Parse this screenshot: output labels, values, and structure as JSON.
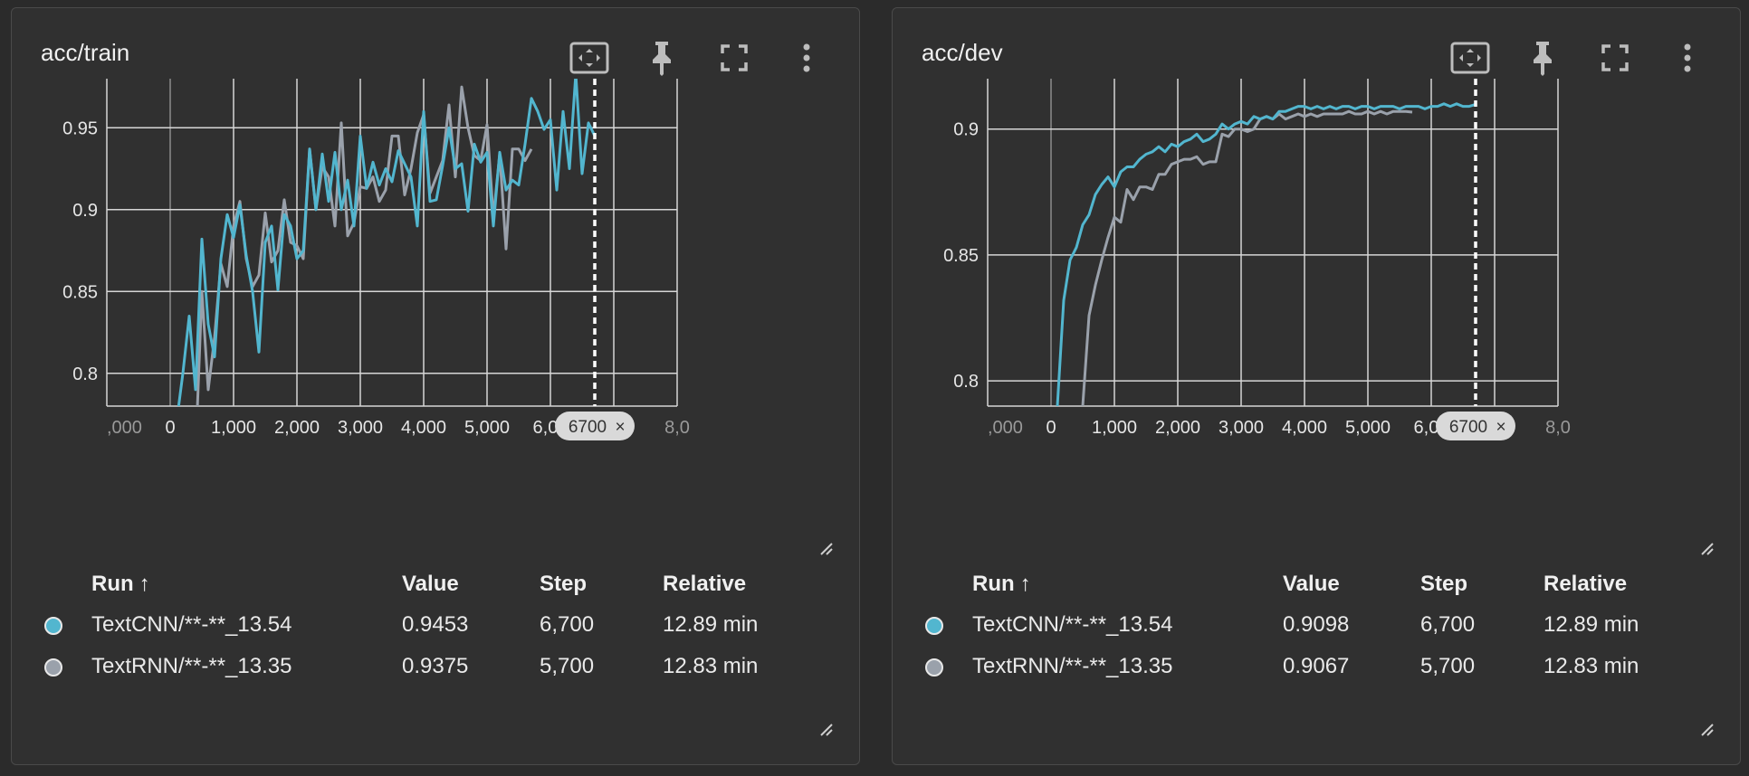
{
  "colors": {
    "textcnn": "#52b6cf",
    "textrnn": "#9aa1ab",
    "grid": "#d6d6d6",
    "marker": "#ffffff"
  },
  "icons": [
    "fit-domain-icon",
    "pin-icon",
    "fullscreen-icon",
    "more-vert-icon"
  ],
  "columns": {
    "run": "Run",
    "sort_indicator": "↑",
    "value": "Value",
    "step": "Step",
    "relative": "Relative"
  },
  "cards": [
    {
      "title": "acc/train",
      "step_badge": "6700",
      "step_badge_close": "×",
      "runs": [
        {
          "name": "TextCNN/**-**_13.54",
          "value": "0.9453",
          "step": "6,700",
          "relative": "12.89 min",
          "color": "#52b6cf"
        },
        {
          "name": "TextRNN/**-**_13.35",
          "value": "0.9375",
          "step": "5,700",
          "relative": "12.83 min",
          "color": "#9aa1ab"
        }
      ]
    },
    {
      "title": "acc/dev",
      "step_badge": "6700",
      "step_badge_close": "×",
      "runs": [
        {
          "name": "TextCNN/**-**_13.54",
          "value": "0.9098",
          "step": "6,700",
          "relative": "12.89 min",
          "color": "#52b6cf"
        },
        {
          "name": "TextRNN/**-**_13.35",
          "value": "0.9067",
          "step": "5,700",
          "relative": "12.83 min",
          "color": "#9aa1ab"
        }
      ]
    }
  ],
  "chart_data": [
    {
      "type": "line",
      "title": "acc/train",
      "xlim": [
        -1000,
        8000
      ],
      "ylim": [
        0.78,
        0.98
      ],
      "x_ticks": [
        "-1,000",
        "0",
        "1,000",
        "2,000",
        "3,000",
        "4,000",
        "5,000",
        "6,000",
        "7,000",
        "8,000"
      ],
      "x_tick_labels": [
        ",000",
        "0",
        "1,000",
        "2,000",
        "3,000",
        "4,000",
        "5,000",
        "6,00",
        "7,00",
        "8,0"
      ],
      "x_tick_values": [
        -1000,
        0,
        1000,
        2000,
        3000,
        4000,
        5000,
        6000,
        7000,
        8000
      ],
      "y_ticks": [
        0.8,
        0.85,
        0.9,
        0.95
      ],
      "y_tick_labels": [
        "0.8",
        "0.85",
        "0.9",
        "0.95"
      ],
      "marker_step": 6700,
      "grid": true,
      "series": [
        {
          "name": "TextCNN/**-**_13.54",
          "x": [
            100,
            200,
            300,
            400,
            500,
            600,
            700,
            800,
            900,
            1000,
            1100,
            1200,
            1300,
            1400,
            1500,
            1600,
            1700,
            1800,
            1900,
            2000,
            2100,
            2200,
            2300,
            2400,
            2500,
            2600,
            2700,
            2800,
            2900,
            3000,
            3100,
            3200,
            3300,
            3400,
            3500,
            3600,
            3700,
            3800,
            3900,
            4000,
            4100,
            4200,
            4300,
            4400,
            4500,
            4600,
            4700,
            4800,
            4900,
            5000,
            5100,
            5200,
            5300,
            5400,
            5500,
            5600,
            5700,
            5800,
            5900,
            6000,
            6100,
            6200,
            6300,
            6400,
            6500,
            6600,
            6700
          ],
          "y": [
            0.77,
            0.8,
            0.835,
            0.79,
            0.882,
            0.83,
            0.81,
            0.87,
            0.897,
            0.883,
            0.903,
            0.872,
            0.85,
            0.813,
            0.88,
            0.89,
            0.851,
            0.897,
            0.89,
            0.87,
            0.875,
            0.937,
            0.9,
            0.934,
            0.905,
            0.935,
            0.9,
            0.918,
            0.89,
            0.945,
            0.913,
            0.929,
            0.915,
            0.925,
            0.917,
            0.936,
            0.928,
            0.92,
            0.89,
            0.96,
            0.905,
            0.906,
            0.927,
            0.95,
            0.925,
            0.928,
            0.899,
            0.94,
            0.929,
            0.935,
            0.89,
            0.935,
            0.912,
            0.918,
            0.915,
            0.94,
            0.968,
            0.96,
            0.949,
            0.955,
            0.912,
            0.96,
            0.925,
            0.983,
            0.922,
            0.953,
            0.945
          ]
        },
        {
          "name": "TextRNN/**-**_13.35",
          "x": [
            400,
            500,
            600,
            700,
            800,
            900,
            1000,
            1100,
            1200,
            1300,
            1400,
            1500,
            1600,
            1700,
            1800,
            1900,
            2000,
            2100,
            2200,
            2300,
            2400,
            2500,
            2600,
            2700,
            2800,
            2900,
            3000,
            3100,
            3200,
            3300,
            3400,
            3500,
            3600,
            3700,
            3800,
            3900,
            4000,
            4100,
            4200,
            4300,
            4400,
            4500,
            4600,
            4700,
            4800,
            4900,
            5000,
            5100,
            5200,
            5300,
            5400,
            5500,
            5600,
            5700
          ],
          "y": [
            0.75,
            0.85,
            0.79,
            0.822,
            0.867,
            0.853,
            0.89,
            0.905,
            0.87,
            0.853,
            0.86,
            0.898,
            0.868,
            0.875,
            0.906,
            0.88,
            0.878,
            0.87,
            0.937,
            0.9,
            0.926,
            0.92,
            0.89,
            0.953,
            0.884,
            0.892,
            0.914,
            0.913,
            0.92,
            0.905,
            0.912,
            0.945,
            0.945,
            0.909,
            0.925,
            0.947,
            0.958,
            0.91,
            0.92,
            0.93,
            0.964,
            0.92,
            0.975,
            0.95,
            0.933,
            0.93,
            0.952,
            0.895,
            0.934,
            0.876,
            0.937,
            0.937,
            0.93,
            0.937
          ]
        }
      ]
    },
    {
      "type": "line",
      "title": "acc/dev",
      "xlim": [
        -1000,
        8000
      ],
      "ylim": [
        0.79,
        0.92
      ],
      "x_ticks": [
        "-1,000",
        "0",
        "1,000",
        "2,000",
        "3,000",
        "4,000",
        "5,000",
        "6,000",
        "7,000",
        "8,000"
      ],
      "x_tick_labels": [
        ",000",
        "0",
        "1,000",
        "2,000",
        "3,000",
        "4,000",
        "5,000",
        "6,00",
        "7,00",
        "8,0"
      ],
      "x_tick_values": [
        -1000,
        0,
        1000,
        2000,
        3000,
        4000,
        5000,
        6000,
        7000,
        8000
      ],
      "y_ticks": [
        0.8,
        0.85,
        0.9
      ],
      "y_tick_labels": [
        "0.8",
        "0.85",
        "0.9"
      ],
      "marker_step": 6700,
      "grid": true,
      "series": [
        {
          "name": "TextCNN/**-**_13.54",
          "x": [
            100,
            200,
            300,
            400,
            500,
            600,
            700,
            800,
            900,
            1000,
            1100,
            1200,
            1300,
            1400,
            1500,
            1600,
            1700,
            1800,
            1900,
            2000,
            2100,
            2200,
            2300,
            2400,
            2500,
            2600,
            2700,
            2800,
            2900,
            3000,
            3100,
            3200,
            3300,
            3400,
            3500,
            3600,
            3700,
            3800,
            3900,
            4000,
            4100,
            4200,
            4300,
            4400,
            4500,
            4600,
            4700,
            4800,
            4900,
            5000,
            5100,
            5200,
            5300,
            5400,
            5500,
            5600,
            5700,
            5800,
            5900,
            6000,
            6100,
            6200,
            6300,
            6400,
            6500,
            6600,
            6700
          ],
          "y": [
            0.79,
            0.832,
            0.848,
            0.853,
            0.862,
            0.866,
            0.874,
            0.878,
            0.881,
            0.877,
            0.883,
            0.885,
            0.885,
            0.888,
            0.89,
            0.891,
            0.893,
            0.891,
            0.894,
            0.893,
            0.895,
            0.896,
            0.898,
            0.895,
            0.896,
            0.898,
            0.902,
            0.9,
            0.902,
            0.903,
            0.902,
            0.905,
            0.904,
            0.905,
            0.904,
            0.907,
            0.907,
            0.908,
            0.909,
            0.909,
            0.908,
            0.909,
            0.908,
            0.909,
            0.908,
            0.909,
            0.909,
            0.908,
            0.909,
            0.909,
            0.908,
            0.909,
            0.909,
            0.909,
            0.908,
            0.909,
            0.909,
            0.909,
            0.908,
            0.909,
            0.909,
            0.91,
            0.909,
            0.91,
            0.909,
            0.909,
            0.9098
          ]
        },
        {
          "name": "TextRNN/**-**_13.35",
          "x": [
            500,
            600,
            700,
            800,
            900,
            1000,
            1100,
            1200,
            1300,
            1400,
            1500,
            1600,
            1700,
            1800,
            1900,
            2000,
            2100,
            2200,
            2300,
            2400,
            2500,
            2600,
            2700,
            2800,
            2900,
            3000,
            3100,
            3200,
            3300,
            3400,
            3500,
            3600,
            3700,
            3800,
            3900,
            4000,
            4100,
            4200,
            4300,
            4400,
            4500,
            4600,
            4700,
            4800,
            4900,
            5000,
            5100,
            5200,
            5300,
            5400,
            5500,
            5600,
            5700
          ],
          "y": [
            0.79,
            0.826,
            0.838,
            0.848,
            0.857,
            0.865,
            0.863,
            0.876,
            0.872,
            0.877,
            0.877,
            0.876,
            0.882,
            0.882,
            0.886,
            0.887,
            0.888,
            0.888,
            0.889,
            0.886,
            0.887,
            0.887,
            0.898,
            0.897,
            0.9,
            0.9,
            0.899,
            0.9,
            0.904,
            0.905,
            0.904,
            0.906,
            0.904,
            0.905,
            0.906,
            0.905,
            0.906,
            0.905,
            0.906,
            0.906,
            0.906,
            0.906,
            0.907,
            0.906,
            0.906,
            0.907,
            0.906,
            0.907,
            0.906,
            0.907,
            0.907,
            0.907,
            0.9067
          ]
        }
      ]
    }
  ]
}
